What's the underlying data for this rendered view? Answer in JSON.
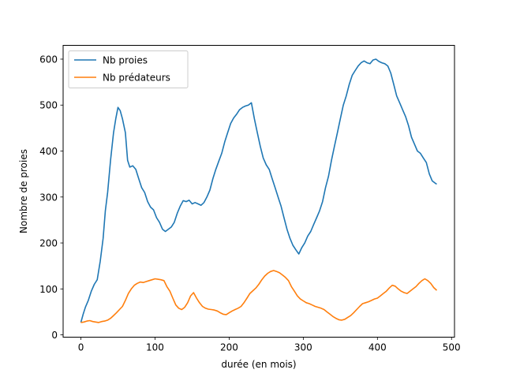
{
  "chart_data": {
    "type": "line",
    "title": "",
    "xlabel": "durée (en mois)",
    "ylabel": "Nombre de proies",
    "xlim": [
      -24,
      504
    ],
    "ylim": [
      -5,
      630
    ],
    "xticks": [
      0,
      100,
      200,
      300,
      400,
      500
    ],
    "yticks": [
      0,
      100,
      200,
      300,
      400,
      500,
      600
    ],
    "grid": false,
    "legend_position": "top-left",
    "series": [
      {
        "name": "Nb proies",
        "color": "#1f77b4",
        "x": [
          0,
          3,
          6,
          10,
          14,
          18,
          22,
          26,
          30,
          33,
          36,
          40,
          44,
          47,
          50,
          53,
          56,
          60,
          63,
          66,
          70,
          74,
          78,
          82,
          86,
          90,
          94,
          98,
          102,
          106,
          110,
          114,
          118,
          122,
          126,
          130,
          134,
          138,
          142,
          146,
          150,
          154,
          158,
          162,
          166,
          170,
          174,
          178,
          182,
          186,
          190,
          194,
          198,
          202,
          206,
          210,
          214,
          218,
          222,
          226,
          230,
          234,
          238,
          242,
          246,
          250,
          254,
          258,
          262,
          266,
          270,
          274,
          278,
          282,
          286,
          290,
          294,
          298,
          302,
          306,
          310,
          314,
          318,
          322,
          326,
          330,
          334,
          338,
          342,
          346,
          350,
          354,
          358,
          362,
          366,
          370,
          374,
          378,
          382,
          386,
          390,
          394,
          398,
          402,
          406,
          410,
          414,
          418,
          422,
          426,
          430,
          434,
          438,
          442,
          446,
          450,
          454,
          458,
          462,
          466,
          470,
          474,
          478,
          480
        ],
        "y": [
          27,
          45,
          60,
          75,
          95,
          110,
          120,
          160,
          210,
          270,
          310,
          380,
          440,
          470,
          495,
          488,
          470,
          440,
          380,
          365,
          368,
          360,
          340,
          320,
          310,
          290,
          278,
          272,
          255,
          245,
          230,
          225,
          230,
          235,
          245,
          265,
          280,
          292,
          290,
          293,
          285,
          288,
          285,
          282,
          288,
          300,
          315,
          340,
          360,
          378,
          395,
          420,
          440,
          460,
          472,
          480,
          490,
          495,
          498,
          500,
          505,
          470,
          440,
          410,
          385,
          370,
          360,
          340,
          320,
          300,
          280,
          255,
          230,
          210,
          195,
          185,
          176,
          190,
          200,
          215,
          225,
          240,
          255,
          270,
          290,
          320,
          345,
          380,
          410,
          440,
          470,
          500,
          520,
          545,
          565,
          575,
          585,
          592,
          596,
          592,
          590,
          598,
          600,
          595,
          592,
          590,
          585,
          570,
          545,
          520,
          505,
          490,
          475,
          455,
          430,
          415,
          400,
          395,
          385,
          375,
          350,
          335,
          330,
          328
        ]
      },
      {
        "name": "Nb prédateurs",
        "color": "#ff7f0e",
        "x": [
          0,
          4,
          8,
          12,
          16,
          20,
          24,
          28,
          32,
          36,
          40,
          44,
          48,
          52,
          56,
          60,
          64,
          68,
          72,
          76,
          80,
          84,
          88,
          92,
          96,
          100,
          104,
          108,
          112,
          116,
          120,
          124,
          128,
          132,
          136,
          140,
          144,
          148,
          152,
          156,
          160,
          164,
          168,
          172,
          176,
          180,
          184,
          188,
          192,
          196,
          200,
          204,
          208,
          212,
          216,
          220,
          224,
          228,
          232,
          236,
          240,
          244,
          248,
          252,
          256,
          260,
          264,
          268,
          272,
          276,
          280,
          284,
          288,
          292,
          296,
          300,
          304,
          308,
          312,
          316,
          320,
          324,
          328,
          332,
          336,
          340,
          344,
          348,
          352,
          356,
          360,
          364,
          368,
          372,
          376,
          380,
          384,
          388,
          392,
          396,
          400,
          404,
          408,
          412,
          416,
          420,
          424,
          428,
          432,
          436,
          440,
          444,
          448,
          452,
          456,
          460,
          464,
          468,
          472,
          476,
          480
        ],
        "y": [
          27,
          28,
          30,
          31,
          29,
          28,
          27,
          29,
          30,
          32,
          36,
          42,
          48,
          55,
          62,
          75,
          90,
          100,
          108,
          112,
          115,
          114,
          116,
          118,
          120,
          122,
          121,
          120,
          118,
          105,
          95,
          80,
          65,
          58,
          55,
          60,
          70,
          85,
          92,
          80,
          70,
          62,
          58,
          56,
          55,
          54,
          52,
          48,
          45,
          44,
          48,
          52,
          55,
          58,
          62,
          70,
          80,
          90,
          96,
          102,
          110,
          120,
          128,
          134,
          138,
          140,
          138,
          135,
          130,
          125,
          118,
          105,
          95,
          85,
          78,
          74,
          70,
          68,
          65,
          62,
          60,
          58,
          55,
          50,
          45,
          40,
          36,
          33,
          32,
          34,
          38,
          42,
          48,
          55,
          62,
          68,
          70,
          72,
          75,
          78,
          80,
          85,
          90,
          95,
          102,
          108,
          106,
          100,
          95,
          92,
          90,
          95,
          100,
          105,
          112,
          118,
          122,
          118,
          112,
          103,
          97
        ]
      }
    ]
  }
}
